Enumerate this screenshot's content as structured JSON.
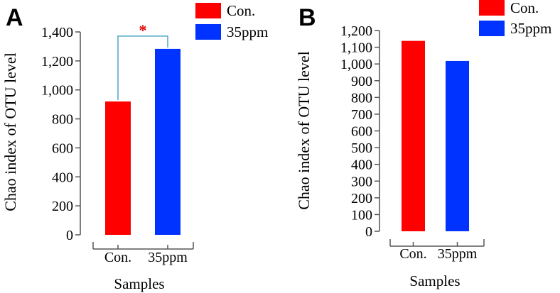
{
  "chart_data": [
    {
      "panel_label": "A",
      "type": "bar",
      "categories": [
        "Con.",
        "35ppm"
      ],
      "values": [
        920,
        1283
      ],
      "colors": [
        "#ff0000",
        "#0033ff"
      ],
      "xlabel": "Samples",
      "ylabel": "Chao index of OTU level",
      "ylim": [
        0,
        1400
      ],
      "yticks": [
        "0",
        "200",
        "400",
        "600",
        "800",
        "1,000",
        "1,200",
        "1,400"
      ],
      "legend": [
        "Con.",
        "35ppm"
      ],
      "significance": "*"
    },
    {
      "panel_label": "B",
      "type": "bar",
      "categories": [
        "Con.",
        "35ppm"
      ],
      "values": [
        1138,
        1018
      ],
      "colors": [
        "#ff0000",
        "#0033ff"
      ],
      "xlabel": "Samples",
      "ylabel": "Chao index of OTU level",
      "ylim": [
        0,
        1200
      ],
      "yticks": [
        "0",
        "100",
        "200",
        "300",
        "400",
        "500",
        "600",
        "700",
        "800",
        "900",
        "1,000",
        "1,100",
        "1,200"
      ],
      "legend": [
        "Con.",
        "35ppm"
      ]
    }
  ]
}
